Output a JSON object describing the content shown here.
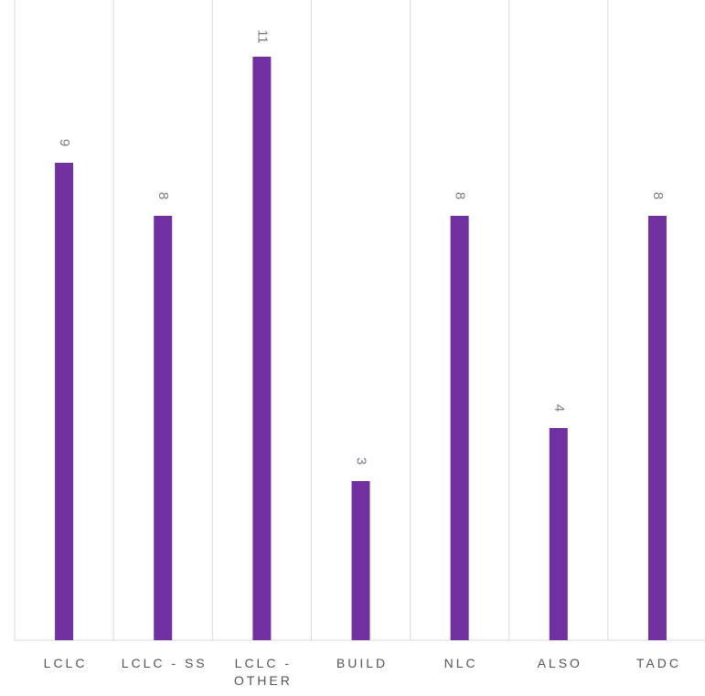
{
  "chart_data": {
    "type": "bar",
    "categories": [
      "LCLC",
      "LCLC - SS",
      "LCLC - OTHER",
      "BUILD",
      "NLC",
      "ALSO",
      "TADC"
    ],
    "values": [
      9,
      8,
      11,
      3,
      8,
      4,
      8
    ],
    "color": "#7030a0",
    "ylim": [
      0,
      12
    ]
  }
}
